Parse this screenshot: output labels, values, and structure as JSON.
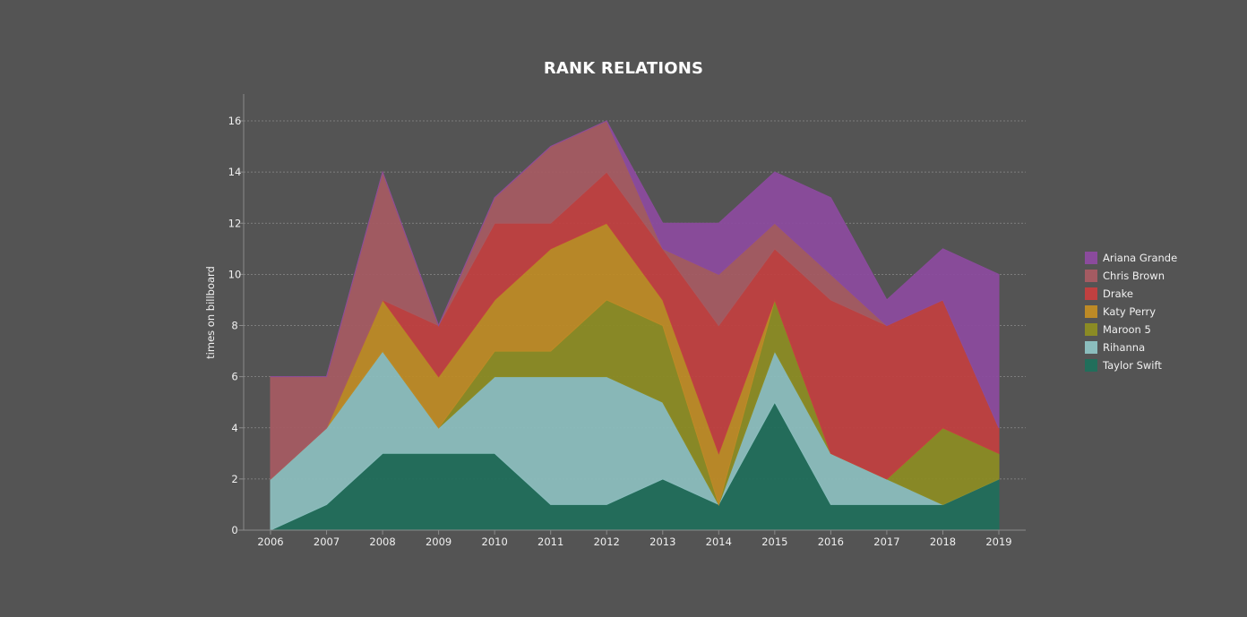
{
  "chart_data": {
    "type": "area",
    "title": "RANK RELATIONS",
    "xlabel": "",
    "ylabel": "times on billboard",
    "x": [
      2006,
      2007,
      2008,
      2009,
      2010,
      2011,
      2012,
      2013,
      2014,
      2015,
      2016,
      2017,
      2018,
      2019
    ],
    "ylim": [
      0,
      16
    ],
    "yticks": [
      0,
      2,
      4,
      6,
      8,
      10,
      12,
      14,
      16
    ],
    "grid": true,
    "stacked": true,
    "legend_position": "right",
    "series": [
      {
        "name": "Taylor Swift",
        "color": "#216e5b",
        "values": [
          0,
          1,
          3,
          3,
          3,
          1,
          1,
          2,
          1,
          5,
          1,
          1,
          1,
          2
        ]
      },
      {
        "name": "Rihanna",
        "color": "#8bbdbd",
        "values": [
          2,
          3,
          4,
          1,
          3,
          5,
          5,
          3,
          0,
          2,
          2,
          1,
          0,
          0
        ]
      },
      {
        "name": "Maroon 5",
        "color": "#8b8b24",
        "values": [
          0,
          0,
          0,
          0,
          1,
          1,
          3,
          3,
          0,
          2,
          0,
          0,
          3,
          1
        ]
      },
      {
        "name": "Katy Perry",
        "color": "#bd8a26",
        "values": [
          0,
          0,
          2,
          2,
          2,
          4,
          3,
          1,
          2,
          0,
          0,
          0,
          0,
          0
        ]
      },
      {
        "name": "Drake",
        "color": "#c04040",
        "values": [
          0,
          0,
          0,
          2,
          3,
          1,
          2,
          2,
          5,
          2,
          6,
          6,
          5,
          1
        ]
      },
      {
        "name": "Chris Brown",
        "color": "#a45b62",
        "values": [
          4,
          2,
          5,
          0,
          1,
          3,
          2,
          0,
          2,
          1,
          1,
          0,
          0,
          0
        ]
      },
      {
        "name": "Ariana Grande",
        "color": "#8b4b9d",
        "values": [
          0,
          0,
          0,
          0,
          0,
          0,
          0,
          1,
          2,
          2,
          3,
          1,
          2,
          6
        ]
      }
    ],
    "legend": [
      "Ariana Grande",
      "Chris Brown",
      "Drake",
      "Katy Perry",
      "Maroon 5",
      "Rihanna",
      "Taylor Swift"
    ]
  }
}
